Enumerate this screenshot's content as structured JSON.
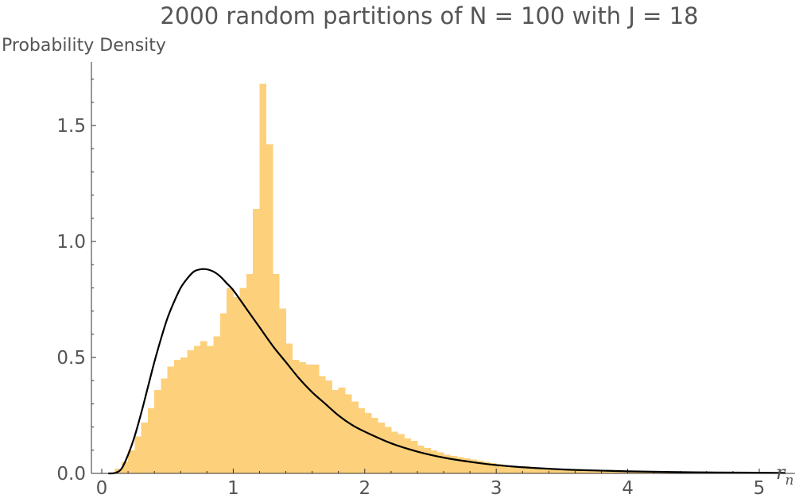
{
  "chart_data": {
    "type": "bar",
    "title": "2000 random partitions of N = 100 with J = 18",
    "ylabel": "Probability Density",
    "xlabel": "r",
    "xlabel_subscript": "n",
    "xlim": [
      0,
      5.2
    ],
    "ylim": [
      0,
      1.75
    ],
    "x_ticks": [
      0,
      1,
      2,
      3,
      4,
      5
    ],
    "x_tick_labels": [
      "0",
      "1",
      "2",
      "3",
      "4",
      "5"
    ],
    "y_ticks": [
      0,
      0.5,
      1.0,
      1.5
    ],
    "y_tick_labels": [
      "0.0",
      "0.5",
      "1.0",
      "1.5"
    ],
    "grid": false,
    "colors": {
      "bars": "#fdd07c",
      "curve": "#000000",
      "text": "#555555",
      "axis": "#333333"
    },
    "histogram": {
      "bin_width": 0.05,
      "bin_start": 0.1,
      "values": [
        0.02,
        0.05,
        0.1,
        0.16,
        0.22,
        0.28,
        0.36,
        0.41,
        0.46,
        0.49,
        0.5,
        0.53,
        0.55,
        0.57,
        0.55,
        0.59,
        0.69,
        0.8,
        0.76,
        0.8,
        0.86,
        1.14,
        1.68,
        1.42,
        0.86,
        0.71,
        0.56,
        0.49,
        0.48,
        0.47,
        0.47,
        0.42,
        0.4,
        0.36,
        0.37,
        0.34,
        0.31,
        0.28,
        0.26,
        0.24,
        0.22,
        0.2,
        0.18,
        0.17,
        0.15,
        0.14,
        0.12,
        0.11,
        0.1,
        0.09,
        0.08,
        0.075,
        0.07,
        0.065,
        0.06,
        0.055,
        0.05,
        0.045,
        0.04,
        0.035,
        0.03,
        0.03,
        0.03,
        0.025,
        0.025,
        0.02,
        0.02,
        0.015,
        0.015,
        0.015,
        0.015,
        0.01,
        0.01,
        0.01,
        0.01,
        0.01,
        0.01,
        0.005,
        0.005,
        0.005,
        0.005,
        0.005,
        0.005,
        0.005,
        0.005,
        0.005,
        0.005,
        0.005,
        0.005,
        0.005,
        0.005,
        0.005,
        0.005
      ]
    },
    "fit_curve": {
      "x": [
        0.05,
        0.1,
        0.15,
        0.2,
        0.25,
        0.3,
        0.35,
        0.4,
        0.45,
        0.5,
        0.55,
        0.6,
        0.65,
        0.7,
        0.75,
        0.8,
        0.85,
        0.9,
        0.95,
        1.0,
        1.1,
        1.2,
        1.3,
        1.4,
        1.5,
        1.6,
        1.7,
        1.8,
        1.9,
        2.0,
        2.2,
        2.4,
        2.6,
        2.8,
        3.0,
        3.3,
        3.6,
        4.0,
        4.5,
        5.0,
        5.2
      ],
      "y": [
        0.0,
        0.002,
        0.02,
        0.08,
        0.16,
        0.26,
        0.37,
        0.48,
        0.58,
        0.67,
        0.74,
        0.8,
        0.84,
        0.87,
        0.88,
        0.88,
        0.87,
        0.85,
        0.82,
        0.79,
        0.71,
        0.63,
        0.55,
        0.48,
        0.41,
        0.35,
        0.3,
        0.25,
        0.21,
        0.18,
        0.13,
        0.094,
        0.068,
        0.05,
        0.036,
        0.023,
        0.015,
        0.009,
        0.005,
        0.003,
        0.002
      ]
    }
  }
}
